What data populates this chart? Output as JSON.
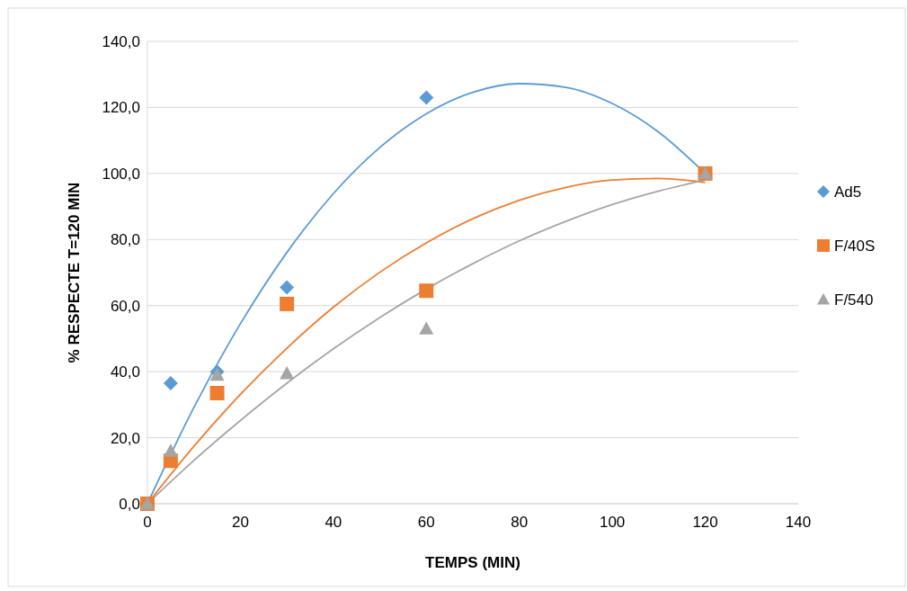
{
  "chart_data": {
    "type": "scatter",
    "xlabel": "TEMPS (MIN)",
    "ylabel": "% RESPECTE T=120 MIN",
    "xlim": [
      0,
      140
    ],
    "ylim": [
      0,
      140
    ],
    "xticks": [
      0,
      20,
      40,
      60,
      80,
      100,
      120,
      140
    ],
    "yticks": [
      {
        "value": 0,
        "label": "0,0"
      },
      {
        "value": 20,
        "label": "20,0"
      },
      {
        "value": 40,
        "label": "40,0"
      },
      {
        "value": 60,
        "label": "60,0"
      },
      {
        "value": 80,
        "label": "80,0"
      },
      {
        "value": 100,
        "label": "100,0"
      },
      {
        "value": 120,
        "label": "120,0"
      },
      {
        "value": 140,
        "label": "140,0"
      }
    ],
    "grid": "y",
    "legend": "right",
    "series": [
      {
        "name": "Ad5",
        "marker": "diamond",
        "color": "#5b9bd5",
        "x": [
          5,
          15,
          30,
          60
        ],
        "values": [
          36.5,
          40,
          65.5,
          123
        ]
      },
      {
        "name": "F/40S",
        "marker": "square",
        "color": "#ed7d31",
        "x": [
          0,
          5,
          15,
          30,
          60,
          120
        ],
        "values": [
          0,
          13,
          33.5,
          60.5,
          64.5,
          100
        ]
      },
      {
        "name": "F/540",
        "marker": "triangle",
        "color": "#a5a5a5",
        "x": [
          0,
          5,
          15,
          30,
          60,
          120
        ],
        "values": [
          0,
          16,
          39,
          39.5,
          53,
          100
        ]
      },
      {
        "type": "line",
        "marker": "none",
        "color": "#5b9bd5",
        "x": [
          0,
          10,
          20,
          30,
          40,
          50,
          60,
          70,
          80,
          90,
          100,
          110,
          120
        ],
        "values": [
          0,
          29.2,
          54.5,
          76.1,
          93.9,
          107.9,
          118.1,
          124.6,
          127.2,
          126.1,
          121.2,
          112.5,
          100
        ]
      },
      {
        "type": "line",
        "marker": "none",
        "color": "#ed7d31",
        "x": [
          0,
          10,
          20,
          30,
          40,
          50,
          60,
          70,
          80,
          90,
          100,
          110,
          120
        ],
        "values": [
          0,
          17.4,
          33.1,
          47.1,
          59.5,
          70.1,
          79,
          86.3,
          91.9,
          95.8,
          98,
          98.5,
          97.3
        ]
      },
      {
        "type": "line",
        "marker": "none",
        "color": "#a5a5a5",
        "x": [
          0,
          10,
          20,
          30,
          40,
          50,
          60,
          70,
          80,
          90,
          100,
          110,
          120
        ],
        "values": [
          0,
          13.1,
          25.2,
          36.5,
          46.9,
          56.4,
          65,
          72.7,
          79.6,
          85.5,
          90.6,
          94.7,
          98
        ]
      }
    ]
  }
}
